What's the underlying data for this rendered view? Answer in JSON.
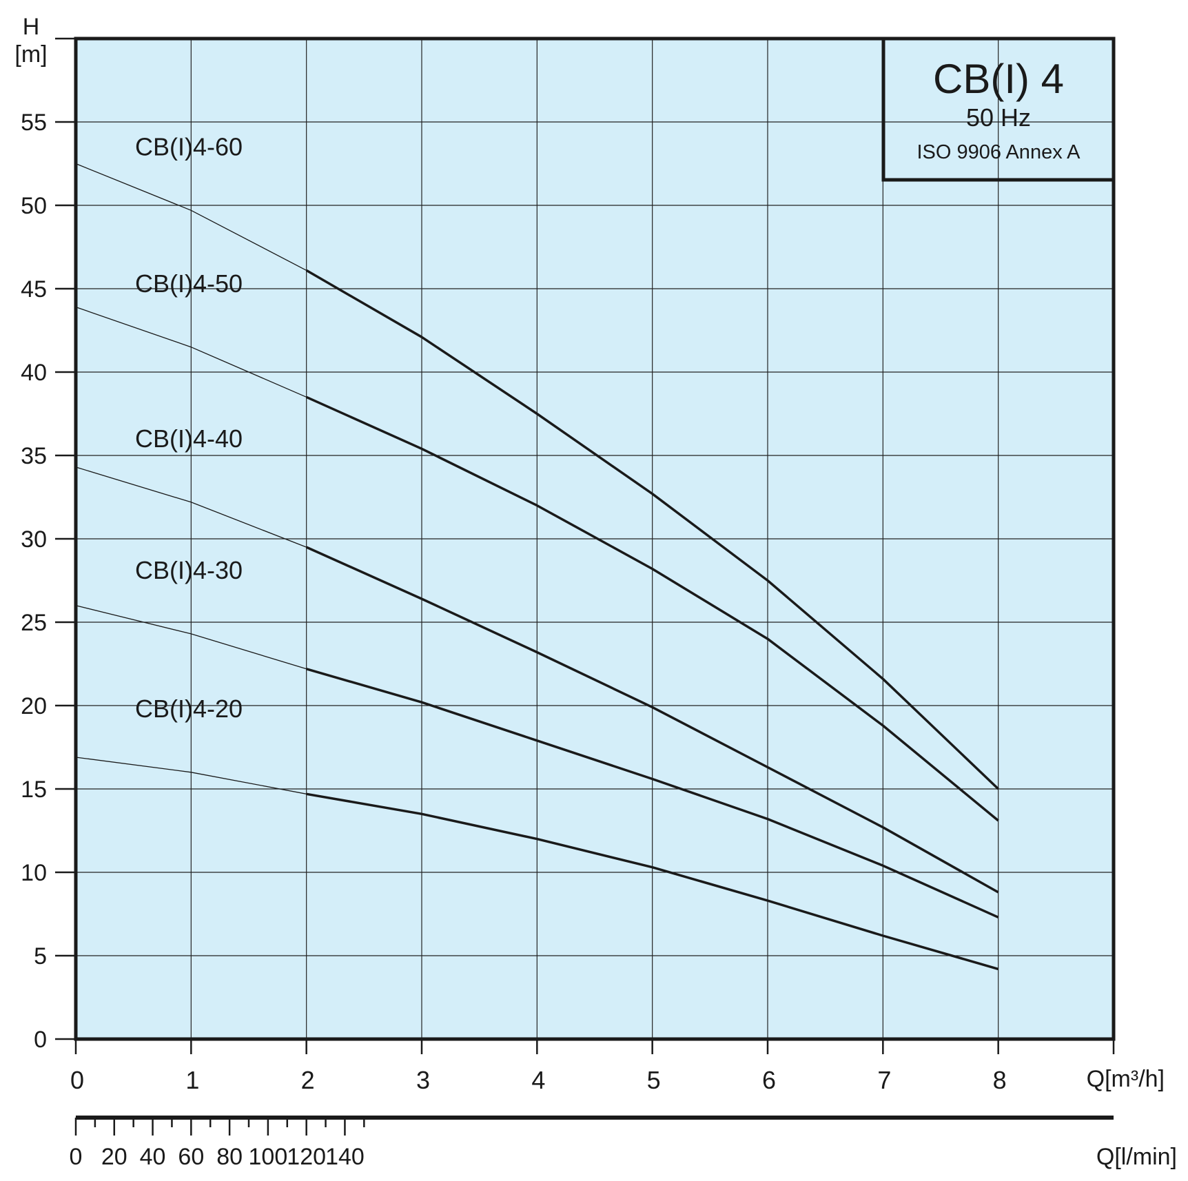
{
  "info_box": {
    "title": "CB(I) 4",
    "frequency": "50 Hz",
    "standard": "ISO 9906 Annex A"
  },
  "colors": {
    "plot_background": "#d4eef9",
    "grid": "#222222",
    "curve": "#1a1a1a",
    "frame": "#1a1a1a"
  },
  "chart_data": {
    "type": "line",
    "xlabel": "Q[m³/h]",
    "xlabel_secondary": "Q[l/min]",
    "ylabel": "H",
    "ylabel_unit": "[m]",
    "xlim": [
      0,
      9
    ],
    "ylim": [
      0,
      60
    ],
    "x_ticks": [
      0,
      1,
      2,
      3,
      4,
      5,
      6,
      7,
      8
    ],
    "y_ticks": [
      0,
      5,
      10,
      15,
      20,
      25,
      30,
      35,
      40,
      45,
      50,
      55
    ],
    "secondary_x_ticks": [
      0,
      20,
      40,
      60,
      80,
      100,
      120,
      140
    ],
    "secondary_x_minor_step": 10,
    "secondary_x_max": 150,
    "grid": true,
    "operating_range_start": 2,
    "series": [
      {
        "name": "CB(I)4-60",
        "x": [
          0,
          1,
          2,
          3,
          4,
          5,
          6,
          7,
          8
        ],
        "y": [
          52.5,
          49.7,
          46.1,
          42.1,
          37.5,
          32.7,
          27.5,
          21.6,
          15.0
        ]
      },
      {
        "name": "CB(I)4-50",
        "x": [
          0,
          1,
          2,
          3,
          4,
          5,
          6,
          7,
          8
        ],
        "y": [
          43.9,
          41.5,
          38.5,
          35.4,
          32.0,
          28.2,
          24.0,
          18.8,
          13.1
        ]
      },
      {
        "name": "CB(I)4-40",
        "x": [
          0,
          1,
          2,
          3,
          4,
          5,
          6,
          7,
          8
        ],
        "y": [
          34.3,
          32.2,
          29.5,
          26.4,
          23.2,
          19.9,
          16.3,
          12.7,
          8.8
        ]
      },
      {
        "name": "CB(I)4-30",
        "x": [
          0,
          1,
          2,
          3,
          4,
          5,
          6,
          7,
          8
        ],
        "y": [
          26.0,
          24.3,
          22.2,
          20.2,
          17.9,
          15.6,
          13.2,
          10.4,
          7.3
        ]
      },
      {
        "name": "CB(I)4-20",
        "x": [
          0,
          1,
          2,
          3,
          4,
          5,
          6,
          7,
          8
        ],
        "y": [
          16.9,
          16.0,
          14.7,
          13.5,
          12.0,
          10.3,
          8.3,
          6.2,
          4.2
        ]
      }
    ]
  }
}
